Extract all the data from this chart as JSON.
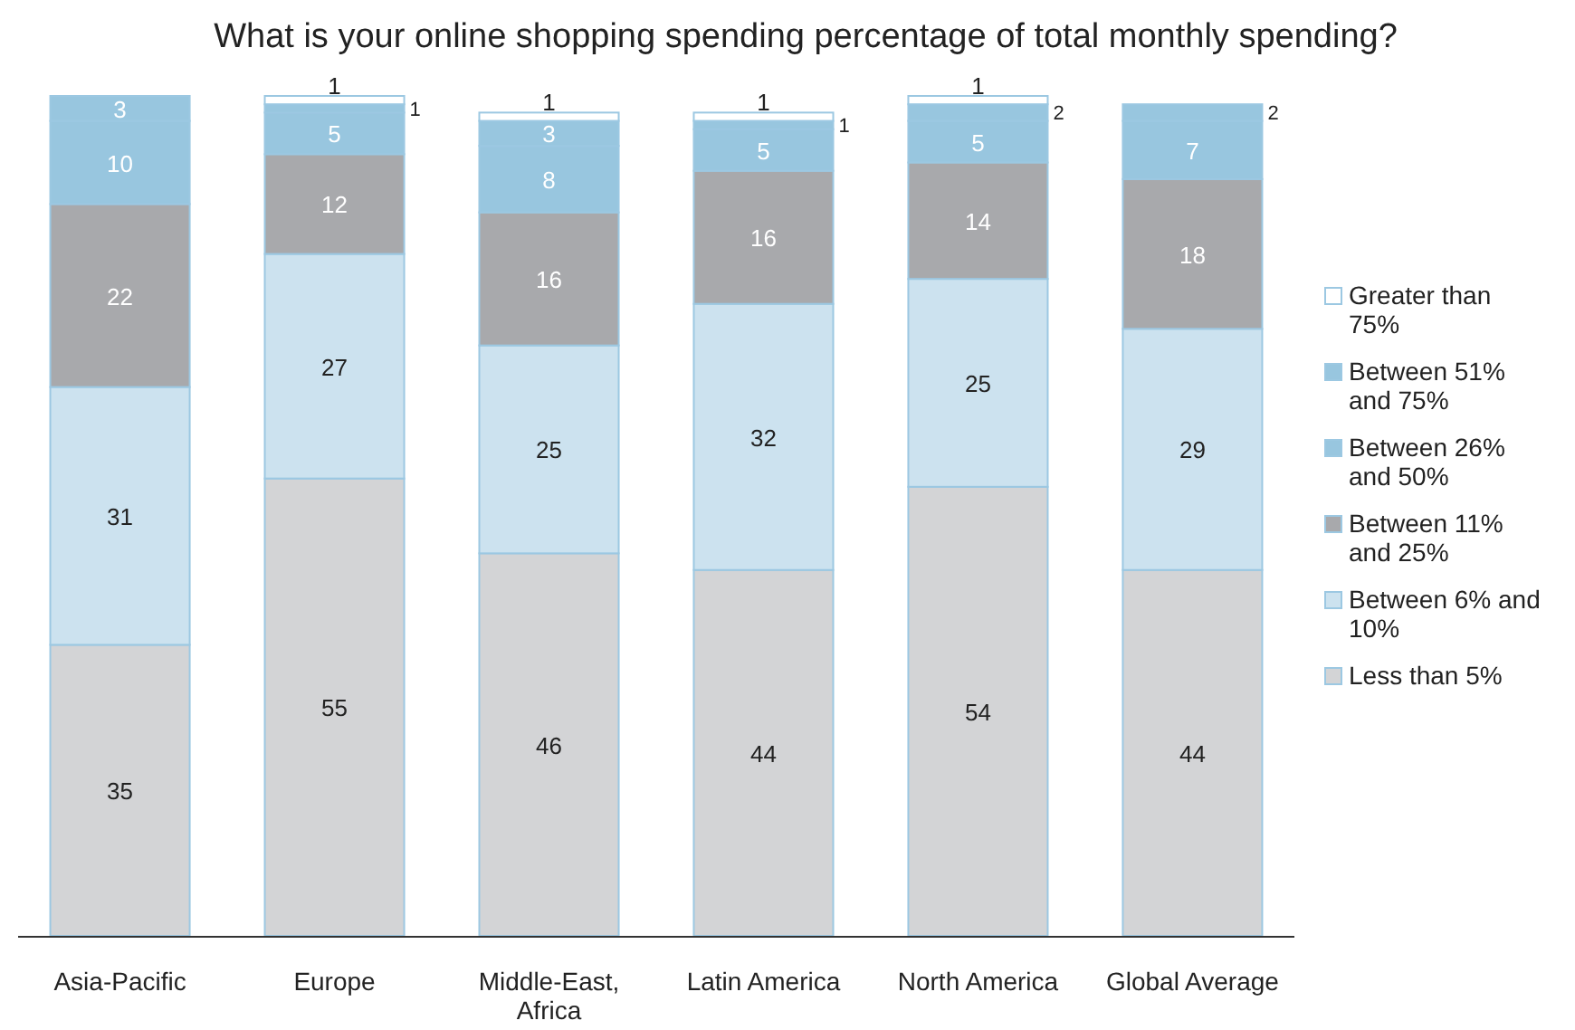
{
  "chart_data": {
    "type": "bar",
    "stacked": true,
    "title": "What is your online shopping spending percentage of total monthly spending?",
    "categories": [
      "Asia-Pacific",
      "Europe",
      "Middle-East, Africa",
      "Latin America",
      "North America",
      "Global Average"
    ],
    "series": [
      {
        "name": "Less than 5%",
        "color": "#d3d4d6",
        "values": [
          35,
          55,
          46,
          44,
          54,
          44
        ]
      },
      {
        "name": "Between 6% and 10%",
        "color": "#cce2ef",
        "values": [
          31,
          27,
          25,
          32,
          25,
          29
        ]
      },
      {
        "name": "Between 11% and 25%",
        "color": "#a8a9ac",
        "values": [
          22,
          12,
          16,
          16,
          14,
          18
        ]
      },
      {
        "name": "Between 26% and 50%",
        "color": "#98c6df",
        "values": [
          10,
          5,
          8,
          5,
          5,
          7
        ]
      },
      {
        "name": "Between 51% and 75%",
        "color": "#98c6df",
        "values": [
          3,
          1,
          3,
          1,
          2,
          2
        ]
      },
      {
        "name": "Greater than 75%",
        "color": "#ffffff",
        "values": [
          null,
          1,
          1,
          1,
          1,
          null
        ]
      }
    ],
    "data_labels": true,
    "legend": "right"
  }
}
